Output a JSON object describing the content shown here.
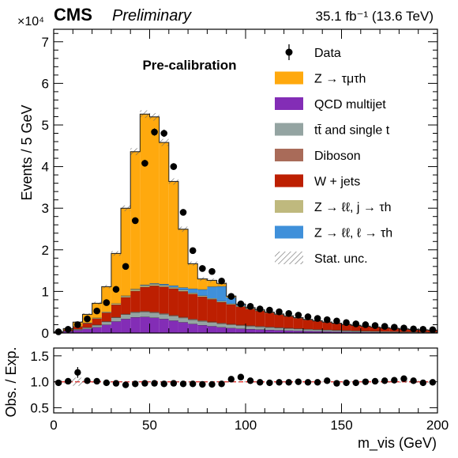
{
  "header": {
    "experiment": "CMS",
    "status": "Preliminary",
    "lumi": "35.1 fb⁻¹ (13.6 TeV)"
  },
  "annotation": "Pre-calibration",
  "chart_data": [
    {
      "type": "bar",
      "stacked": true,
      "x_edges_start": 0,
      "bin_width": 5,
      "nbins": 40,
      "xlim": [
        0,
        200
      ],
      "ylim": [
        0,
        73000
      ],
      "y_exponent_label": "×10⁴",
      "ylabel": "Events / 5 GeV",
      "yticks": [
        "0",
        "1",
        "2",
        "3",
        "4",
        "5",
        "6",
        "7"
      ],
      "series": [
        {
          "name": "QCD multijet",
          "color": "#832db6",
          "values": [
            100,
            400,
            700,
            1000,
            1400,
            2000,
            2800,
            3400,
            3800,
            3900,
            3700,
            3400,
            3000,
            2600,
            2200,
            1900,
            1650,
            1400,
            1200,
            1050,
            950,
            850,
            760,
            680,
            600,
            530,
            470,
            420,
            370,
            330,
            290,
            260,
            230,
            200,
            180,
            160,
            140,
            120,
            110,
            100
          ]
        },
        {
          "name": "t̄t and single t",
          "color": "#94a4a2",
          "values": [
            50,
            100,
            200,
            300,
            500,
            700,
            900,
            1050,
            1150,
            1200,
            1200,
            1150,
            1100,
            1050,
            1000,
            950,
            900,
            850,
            800,
            750,
            700,
            650,
            600,
            550,
            500,
            460,
            420,
            380,
            340,
            310,
            280,
            250,
            220,
            200,
            180,
            160,
            140,
            125,
            110,
            100
          ]
        },
        {
          "name": "Diboson",
          "color": "#a96b59",
          "values": [
            10,
            20,
            40,
            60,
            80,
            100,
            120,
            140,
            160,
            170,
            180,
            185,
            190,
            190,
            185,
            180,
            175,
            170,
            165,
            160,
            150,
            140,
            130,
            120,
            110,
            100,
            90,
            80,
            70,
            60,
            55,
            50,
            45,
            40,
            35,
            30,
            28,
            25,
            22,
            20
          ]
        },
        {
          "name": "W + jets",
          "color": "#bd1f01",
          "values": [
            100,
            300,
            600,
            1000,
            1500,
            2100,
            3000,
            4000,
            5000,
            5800,
            6300,
            6400,
            6400,
            6200,
            6000,
            5700,
            5400,
            5000,
            4700,
            4400,
            4000,
            3700,
            3400,
            3100,
            2800,
            2500,
            2200,
            2000,
            1800,
            1600,
            1400,
            1250,
            1100,
            950,
            850,
            750,
            650,
            580,
            510,
            450
          ]
        },
        {
          "name": "Z → ℓℓ, j → τh",
          "color": "#bfb97e",
          "values": [
            20,
            40,
            80,
            120,
            180,
            240,
            300,
            340,
            370,
            380,
            370,
            350,
            330,
            300,
            280,
            260,
            240,
            220,
            200,
            190,
            180,
            170,
            150,
            140,
            130,
            120,
            110,
            100,
            90,
            80,
            70,
            65,
            60,
            55,
            50,
            45,
            40,
            35,
            30,
            28
          ]
        },
        {
          "name": "Z → ℓℓ, ℓ → τh",
          "color": "#3f90da",
          "values": [
            0,
            0,
            0,
            0,
            0,
            0,
            0,
            50,
            100,
            150,
            200,
            300,
            400,
            600,
            1000,
            1500,
            2800,
            3600,
            1500,
            300,
            100,
            50,
            0,
            0,
            0,
            0,
            0,
            0,
            0,
            0,
            0,
            0,
            0,
            0,
            0,
            0,
            0,
            0,
            0,
            0
          ]
        },
        {
          "name": "Z → τμτh",
          "color": "#ffa90e",
          "values": [
            20,
            200,
            1000,
            2000,
            3500,
            6000,
            12000,
            21000,
            33000,
            41000,
            40000,
            34000,
            25000,
            14000,
            6000,
            2500,
            1500,
            700,
            300,
            100,
            30,
            10,
            0,
            0,
            0,
            0,
            0,
            0,
            0,
            0,
            0,
            0,
            0,
            0,
            0,
            0,
            0,
            0,
            0,
            0
          ]
        }
      ],
      "data": {
        "name": "Data",
        "values": [
          300,
          900,
          2000,
          3400,
          5300,
          7300,
          10500,
          16000,
          27000,
          40800,
          48300,
          48000,
          40000,
          29000,
          19800,
          15500,
          14800,
          12500,
          8800,
          7000,
          6400,
          5800,
          5500,
          5100,
          4700,
          4300,
          3900,
          3500,
          3200,
          2900,
          2500,
          2200,
          2000,
          1800,
          1600,
          1400,
          1200,
          1000,
          900,
          800
        ]
      },
      "legend": [
        {
          "label": "Data",
          "kind": "marker"
        },
        {
          "label": "Z  → τμτh",
          "color": "#ffa90e"
        },
        {
          "label": "QCD multijet",
          "color": "#832db6"
        },
        {
          "label": "tt̄ and single t",
          "color": "#94a4a2"
        },
        {
          "label": "Diboson",
          "color": "#a96b59"
        },
        {
          "label": "W  +  jets",
          "color": "#bd1f01"
        },
        {
          "label": "Z → ℓℓ, j → τh",
          "color": "#bfb97e"
        },
        {
          "label": "Z  → ℓℓ, ℓ → τh",
          "color": "#3f90da"
        },
        {
          "label": "Stat. unc.",
          "kind": "hatch"
        }
      ],
      "legend_placement": "top-right"
    },
    {
      "type": "scatter",
      "ylabel": "Obs. / Exp.",
      "ylim": [
        0.4,
        1.65
      ],
      "yticks": [
        "0.5",
        "1.0",
        "1.5"
      ],
      "xlabel": "m_vis (GeV)",
      "xticks": [
        "0",
        "50",
        "100",
        "150",
        "200"
      ],
      "reference_line": 1.0,
      "ratio": [
        0.98,
        1.01,
        1.18,
        1.02,
        1.01,
        0.98,
        0.97,
        0.94,
        0.96,
        0.97,
        0.97,
        0.96,
        0.97,
        0.96,
        0.96,
        0.95,
        0.95,
        0.96,
        1.05,
        1.09,
        1.02,
        0.99,
        0.98,
        0.99,
        0.99,
        1.0,
        0.99,
        0.99,
        1.02,
        0.97,
        0.98,
        0.98,
        1.0,
        1.01,
        1.02,
        1.03,
        1.06,
        1.02,
        0.98,
        0.99
      ],
      "ratio_errors": [
        0.03,
        0.03,
        0.08,
        0.02,
        0.02,
        0.015,
        0.01,
        0.01,
        0.01,
        0.01,
        0.01,
        0.01,
        0.01,
        0.01,
        0.01,
        0.01,
        0.01,
        0.01,
        0.01,
        0.01,
        0.01,
        0.01,
        0.01,
        0.01,
        0.01,
        0.01,
        0.012,
        0.012,
        0.012,
        0.013,
        0.013,
        0.014,
        0.015,
        0.016,
        0.017,
        0.018,
        0.02,
        0.02,
        0.02,
        0.02
      ]
    }
  ]
}
